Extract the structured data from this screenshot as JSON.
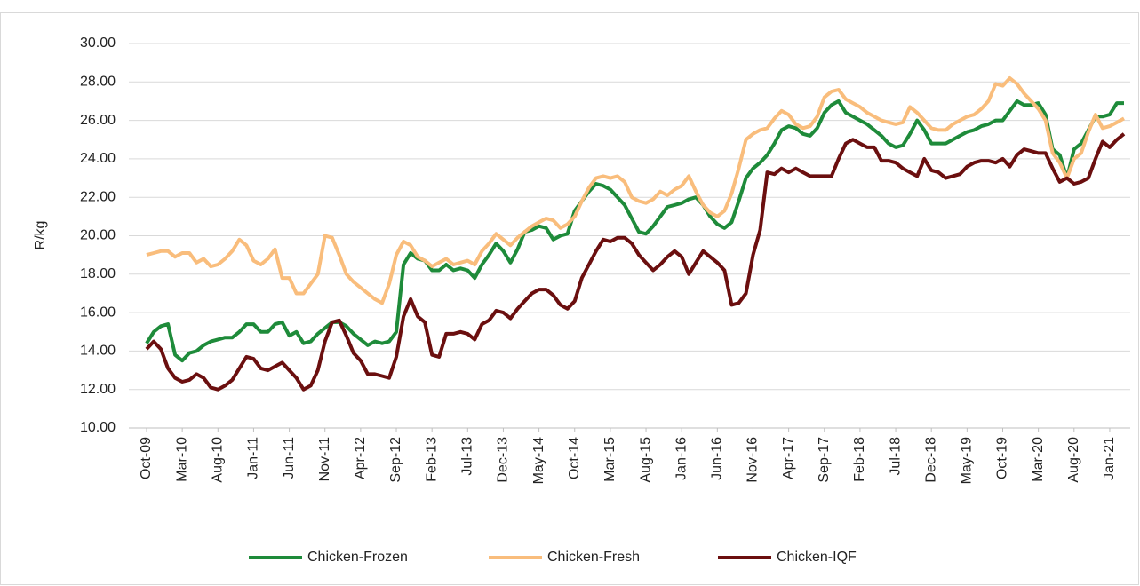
{
  "chart_data": {
    "type": "line",
    "y_label": "R/kg",
    "legend": "bottom",
    "grid": true,
    "ylim": [
      10,
      30
    ],
    "yticks": [
      {
        "value": 10,
        "label": "10.00"
      },
      {
        "value": 12,
        "label": "12.00"
      },
      {
        "value": 14,
        "label": "14.00"
      },
      {
        "value": 16,
        "label": "16.00"
      },
      {
        "value": 18,
        "label": "18.00"
      },
      {
        "value": 20,
        "label": "20.00"
      },
      {
        "value": 22,
        "label": "22.00"
      },
      {
        "value": 24,
        "label": "24.00"
      },
      {
        "value": 26,
        "label": "26.00"
      },
      {
        "value": 28,
        "label": "28.00"
      },
      {
        "value": 30,
        "label": "30.00"
      }
    ],
    "categories": [
      "Oct-09",
      null,
      null,
      null,
      null,
      "Mar-10",
      null,
      null,
      null,
      null,
      "Aug-10",
      null,
      null,
      null,
      null,
      "Jan-11",
      null,
      null,
      null,
      null,
      "Jun-11",
      null,
      null,
      null,
      null,
      "Nov-11",
      null,
      null,
      null,
      null,
      "Apr-12",
      null,
      null,
      null,
      null,
      "Sep-12",
      null,
      null,
      null,
      null,
      "Feb-13",
      null,
      null,
      null,
      null,
      "Jul-13",
      null,
      null,
      null,
      null,
      "Dec-13",
      null,
      null,
      null,
      null,
      "May-14",
      null,
      null,
      null,
      null,
      "Oct-14",
      null,
      null,
      null,
      null,
      "Mar-15",
      null,
      null,
      null,
      null,
      "Aug-15",
      null,
      null,
      null,
      null,
      "Jan-16",
      null,
      null,
      null,
      null,
      "Jun-16",
      null,
      null,
      null,
      null,
      "Nov-16",
      null,
      null,
      null,
      null,
      "Apr-17",
      null,
      null,
      null,
      null,
      "Sep-17",
      null,
      null,
      null,
      null,
      "Feb-18",
      null,
      null,
      null,
      null,
      "Jul-18",
      null,
      null,
      null,
      null,
      "Dec-18",
      null,
      null,
      null,
      null,
      "May-19",
      null,
      null,
      null,
      null,
      "Oct-19",
      null,
      null,
      null,
      null,
      "Mar-20",
      null,
      null,
      null,
      null,
      "Aug-20",
      null,
      null,
      null,
      null,
      "Jan-21",
      null,
      null
    ],
    "series": [
      {
        "name": "Chicken-Frozen",
        "color": "#1e8b3a",
        "values": [
          14.4,
          15.0,
          15.3,
          15.4,
          13.8,
          13.5,
          13.9,
          14.0,
          14.3,
          14.5,
          14.6,
          14.7,
          14.7,
          15.0,
          15.4,
          15.4,
          15.0,
          15.0,
          15.4,
          15.5,
          14.8,
          15.0,
          14.4,
          14.5,
          14.9,
          15.2,
          15.5,
          15.5,
          15.3,
          14.9,
          14.6,
          14.3,
          14.5,
          14.4,
          14.5,
          15.0,
          18.5,
          19.1,
          18.8,
          18.7,
          18.2,
          18.2,
          18.5,
          18.2,
          18.3,
          18.2,
          17.8,
          18.5,
          19.0,
          19.6,
          19.2,
          18.6,
          19.3,
          20.2,
          20.3,
          20.5,
          20.4,
          19.8,
          20.0,
          20.1,
          21.3,
          21.8,
          22.3,
          22.7,
          22.6,
          22.4,
          22.0,
          21.6,
          20.9,
          20.2,
          20.1,
          20.5,
          21.0,
          21.5,
          21.6,
          21.7,
          21.9,
          22.0,
          21.6,
          21.0,
          20.6,
          20.4,
          20.7,
          21.8,
          23.0,
          23.5,
          23.8,
          24.2,
          24.8,
          25.5,
          25.7,
          25.6,
          25.3,
          25.2,
          25.6,
          26.4,
          26.8,
          27.0,
          26.4,
          26.2,
          26.0,
          25.8,
          25.5,
          25.2,
          24.8,
          24.6,
          24.7,
          25.3,
          26.0,
          25.5,
          24.8,
          24.8,
          24.8,
          25.0,
          25.2,
          25.4,
          25.5,
          25.7,
          25.8,
          26.0,
          26.0,
          26.5,
          27.0,
          26.8,
          26.8,
          26.9,
          26.3,
          24.5,
          24.2,
          23.0,
          24.5,
          24.8,
          25.5,
          26.2,
          26.2,
          26.3,
          26.9,
          26.9
        ]
      },
      {
        "name": "Chicken-Fresh",
        "color": "#f9bd7c",
        "values": [
          19.0,
          19.1,
          19.2,
          19.2,
          18.9,
          19.1,
          19.1,
          18.6,
          18.8,
          18.4,
          18.5,
          18.8,
          19.2,
          19.8,
          19.5,
          18.7,
          18.5,
          18.8,
          19.3,
          17.8,
          17.8,
          17.0,
          17.0,
          17.5,
          18.0,
          20.0,
          19.9,
          19.0,
          18.0,
          17.6,
          17.3,
          17.0,
          16.7,
          16.5,
          17.5,
          19.0,
          19.7,
          19.5,
          18.9,
          18.7,
          18.4,
          18.6,
          18.8,
          18.5,
          18.6,
          18.7,
          18.5,
          19.2,
          19.6,
          20.1,
          19.8,
          19.5,
          19.9,
          20.2,
          20.5,
          20.7,
          20.9,
          20.8,
          20.4,
          20.6,
          21.0,
          21.8,
          22.5,
          23.0,
          23.1,
          23.0,
          23.1,
          22.8,
          22.0,
          21.8,
          21.7,
          21.9,
          22.3,
          22.1,
          22.4,
          22.6,
          23.1,
          22.3,
          21.6,
          21.2,
          21.0,
          21.3,
          22.2,
          23.5,
          25.0,
          25.3,
          25.5,
          25.6,
          26.1,
          26.5,
          26.3,
          25.8,
          25.6,
          25.7,
          26.2,
          27.2,
          27.5,
          27.6,
          27.1,
          26.9,
          26.7,
          26.4,
          26.2,
          26.0,
          25.9,
          25.8,
          25.9,
          26.7,
          26.4,
          26.0,
          25.6,
          25.5,
          25.5,
          25.8,
          26.0,
          26.2,
          26.3,
          26.6,
          27.0,
          27.9,
          27.8,
          28.2,
          27.9,
          27.4,
          27.0,
          26.6,
          26.0,
          24.3,
          23.8,
          23.0,
          24.0,
          24.3,
          25.4,
          26.3,
          25.6,
          25.7,
          25.9,
          26.1
        ]
      },
      {
        "name": "Chicken-IQF",
        "color": "#6b0f0f",
        "values": [
          14.1,
          14.5,
          14.1,
          13.1,
          12.6,
          12.4,
          12.5,
          12.8,
          12.6,
          12.1,
          12.0,
          12.2,
          12.5,
          13.1,
          13.7,
          13.6,
          13.1,
          13.0,
          13.2,
          13.4,
          13.0,
          12.6,
          12.0,
          12.2,
          13.0,
          14.5,
          15.5,
          15.6,
          14.8,
          13.9,
          13.5,
          12.8,
          12.8,
          12.7,
          12.6,
          13.7,
          15.8,
          16.7,
          15.8,
          15.5,
          13.8,
          13.7,
          14.9,
          14.9,
          15.0,
          14.9,
          14.6,
          15.4,
          15.6,
          16.1,
          16.0,
          15.7,
          16.2,
          16.6,
          17.0,
          17.2,
          17.2,
          16.9,
          16.4,
          16.2,
          16.6,
          17.8,
          18.5,
          19.2,
          19.8,
          19.7,
          19.9,
          19.9,
          19.6,
          19.0,
          18.6,
          18.2,
          18.5,
          18.9,
          19.2,
          18.9,
          18.0,
          18.6,
          19.2,
          18.9,
          18.6,
          18.2,
          16.4,
          16.5,
          17.0,
          19.0,
          20.3,
          23.3,
          23.2,
          23.5,
          23.3,
          23.5,
          23.3,
          23.1,
          23.1,
          23.1,
          23.1,
          24.0,
          24.8,
          25.0,
          24.8,
          24.6,
          24.6,
          23.9,
          23.9,
          23.8,
          23.5,
          23.3,
          23.1,
          24.0,
          23.4,
          23.3,
          23.0,
          23.1,
          23.2,
          23.6,
          23.8,
          23.9,
          23.9,
          23.8,
          24.0,
          23.6,
          24.2,
          24.5,
          24.4,
          24.3,
          24.3,
          23.5,
          22.8,
          23.0,
          22.7,
          22.8,
          23.0,
          24.0,
          24.9,
          24.6,
          25.0,
          25.3
        ]
      }
    ]
  }
}
